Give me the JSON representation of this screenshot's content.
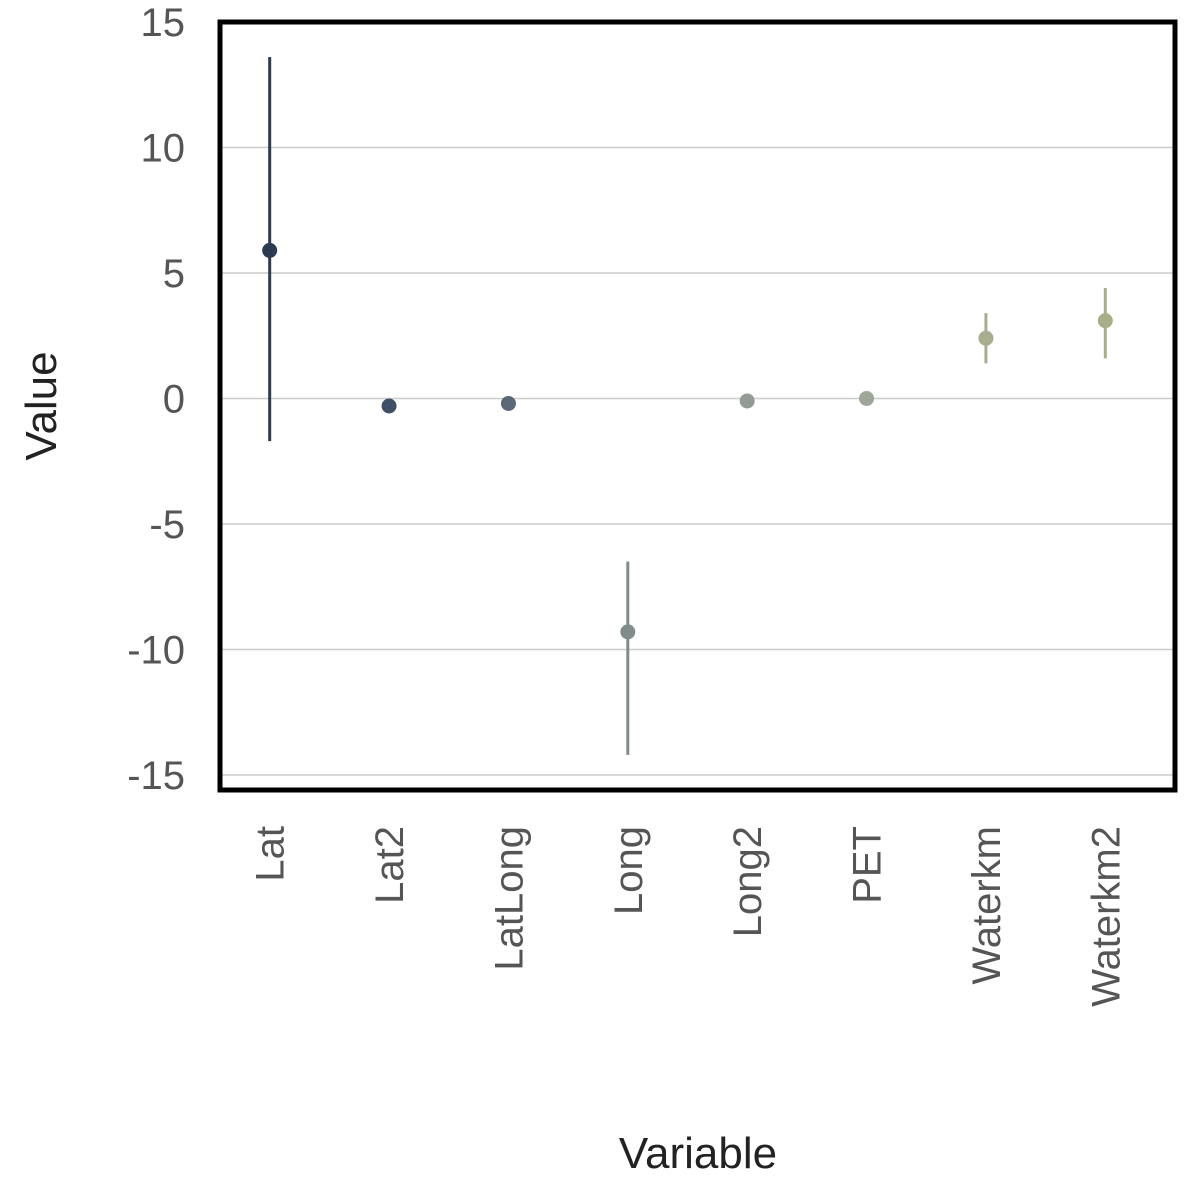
{
  "chart_data": {
    "type": "scatter",
    "xlabel": "Variable",
    "ylabel": "Value",
    "ylim": [
      -15.6,
      15
    ],
    "y_ticks": [
      "15",
      "10",
      "5",
      "0",
      "-5",
      "-10",
      "-15"
    ],
    "y_tick_values": [
      15,
      10,
      5,
      0,
      -5,
      -10,
      -15
    ],
    "grid": "horizontal",
    "categories": [
      "Lat",
      "Lat2",
      "LatLong",
      "Long",
      "Long2",
      "PET",
      "Waterkm",
      "Waterkm2"
    ],
    "points": [
      {
        "variable": "Lat",
        "value": 5.9,
        "lower": -1.7,
        "upper": 13.6,
        "color": "#2a3b52"
      },
      {
        "variable": "Lat2",
        "value": -0.3,
        "lower": -0.3,
        "upper": -0.3,
        "color": "#3f4f66"
      },
      {
        "variable": "LatLong",
        "value": -0.2,
        "lower": -0.2,
        "upper": -0.2,
        "color": "#5a6878"
      },
      {
        "variable": "Long",
        "value": -9.3,
        "lower": -14.2,
        "upper": -6.5,
        "color": "#818c8a"
      },
      {
        "variable": "Long2",
        "value": -0.1,
        "lower": -0.1,
        "upper": -0.1,
        "color": "#929c94"
      },
      {
        "variable": "PET",
        "value": 0.0,
        "lower": 0.0,
        "upper": 0.0,
        "color": "#9ea797"
      },
      {
        "variable": "Waterkm",
        "value": 2.4,
        "lower": 1.4,
        "upper": 3.4,
        "color": "#a7ad8d"
      },
      {
        "variable": "Waterkm2",
        "value": 3.1,
        "lower": 1.6,
        "upper": 4.4,
        "color": "#a9ae87"
      }
    ]
  }
}
